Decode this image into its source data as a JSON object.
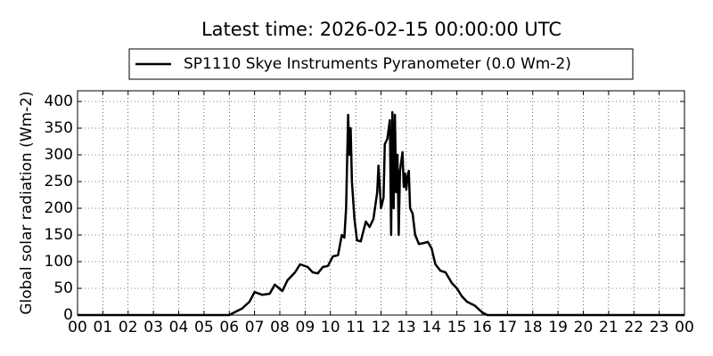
{
  "chart_data": {
    "type": "line",
    "title": "Latest time: 2026-02-15 00:00:00 UTC",
    "ylabel": "Global solar radiation (Wm-2)",
    "xlim": [
      0,
      24
    ],
    "ylim": [
      0,
      420
    ],
    "yticks": [
      0,
      50,
      100,
      150,
      200,
      250,
      300,
      350,
      400
    ],
    "xticks": [
      {
        "value": 0,
        "label": "00"
      },
      {
        "value": 1,
        "label": "01"
      },
      {
        "value": 2,
        "label": "02"
      },
      {
        "value": 3,
        "label": "03"
      },
      {
        "value": 4,
        "label": "04"
      },
      {
        "value": 5,
        "label": "05"
      },
      {
        "value": 6,
        "label": "06"
      },
      {
        "value": 7,
        "label": "07"
      },
      {
        "value": 8,
        "label": "08"
      },
      {
        "value": 9,
        "label": "09"
      },
      {
        "value": 10,
        "label": "10"
      },
      {
        "value": 11,
        "label": "11"
      },
      {
        "value": 12,
        "label": "12"
      },
      {
        "value": 13,
        "label": "13"
      },
      {
        "value": 14,
        "label": "14"
      },
      {
        "value": 15,
        "label": "15"
      },
      {
        "value": 16,
        "label": "16"
      },
      {
        "value": 17,
        "label": "17"
      },
      {
        "value": 18,
        "label": "18"
      },
      {
        "value": 19,
        "label": "19"
      },
      {
        "value": 20,
        "label": "20"
      },
      {
        "value": 21,
        "label": "21"
      },
      {
        "value": 22,
        "label": "22"
      },
      {
        "value": 23,
        "label": "23"
      },
      {
        "value": 24,
        "label": "00"
      }
    ],
    "grid": true,
    "legend": "top",
    "x": [
      0,
      6,
      6.2,
      6.5,
      6.8,
      7.0,
      7.3,
      7.6,
      7.8,
      8.1,
      8.3,
      8.6,
      8.8,
      9.1,
      9.3,
      9.5,
      9.7,
      9.9,
      10.1,
      10.3,
      10.45,
      10.55,
      10.62,
      10.7,
      10.75,
      10.8,
      10.85,
      10.95,
      11.05,
      11.2,
      11.4,
      11.55,
      11.7,
      11.85,
      11.9,
      12.0,
      12.1,
      12.15,
      12.25,
      12.35,
      12.4,
      12.45,
      12.5,
      12.55,
      12.6,
      12.65,
      12.7,
      12.75,
      12.85,
      12.9,
      12.95,
      13.0,
      13.05,
      13.1,
      13.15,
      13.25,
      13.35,
      13.5,
      13.7,
      13.85,
      14.0,
      14.15,
      14.35,
      14.55,
      14.8,
      15.0,
      15.2,
      15.4,
      15.7,
      16.0,
      16.2,
      24
    ],
    "series": [
      {
        "name": "SP1110 Skye Instruments Pyranometer (0.0 Wm-2)",
        "color": "#000000",
        "values": [
          0,
          0,
          5,
          12,
          25,
          43,
          38,
          40,
          57,
          45,
          65,
          80,
          95,
          90,
          80,
          78,
          90,
          92,
          110,
          112,
          150,
          145,
          200,
          375,
          300,
          350,
          250,
          180,
          140,
          138,
          175,
          165,
          180,
          230,
          280,
          200,
          220,
          320,
          330,
          365,
          150,
          380,
          200,
          375,
          230,
          300,
          150,
          270,
          305,
          240,
          265,
          235,
          260,
          270,
          200,
          190,
          150,
          133,
          135,
          137,
          125,
          95,
          83,
          80,
          60,
          50,
          35,
          25,
          18,
          5,
          0,
          0
        ]
      }
    ]
  }
}
